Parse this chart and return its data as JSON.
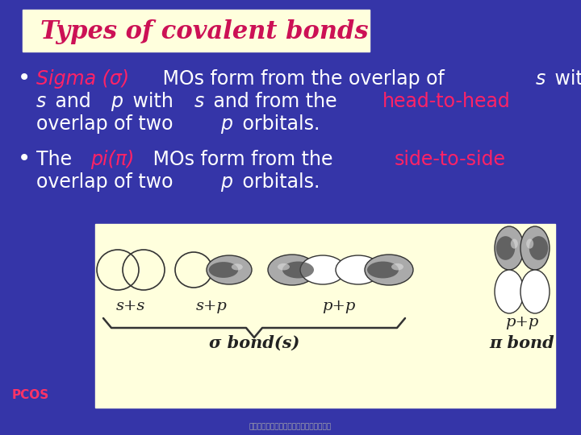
{
  "bg_color": "#3535a8",
  "title_box_color": "#ffffdd",
  "title_text": "Types of covalent bonds",
  "title_color": "#cc1155",
  "title_fontsize": 22,
  "body_fontsize": 17,
  "diagram_box_color": "#ffffdd",
  "sigma_label": "σ bond(s)",
  "pi_label": "π bond",
  "splus_s": "s+s",
  "splus_p": "s+p",
  "pplus_p_sigma": "p+p",
  "pplus_p_pi": "p+p",
  "pcos_color": "#ff3366",
  "diagram_fontsize": 14
}
